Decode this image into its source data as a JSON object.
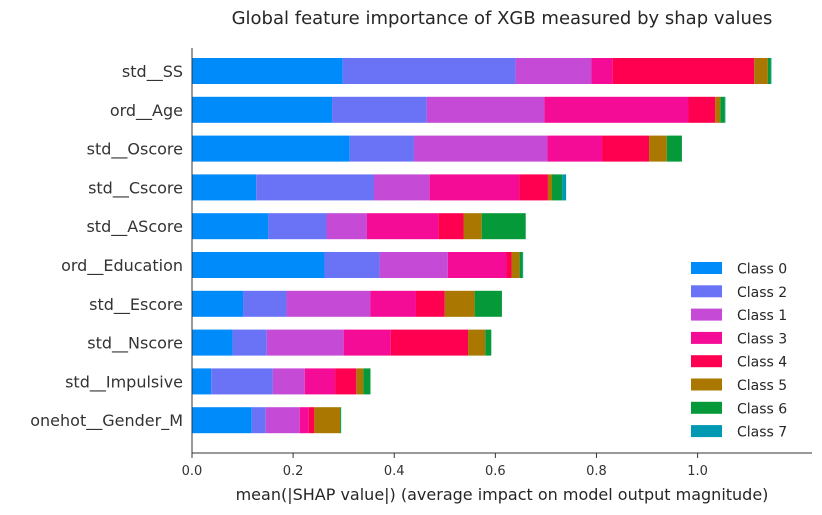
{
  "chart_data": {
    "type": "bar",
    "orientation": "horizontal",
    "stacked": true,
    "title": "Global feature importance of XGB measured by shap values",
    "xlabel": "mean(|SHAP value|) (average impact on model output magnitude)",
    "ylabel": "",
    "xlim": [
      0,
      1.15
    ],
    "xticks": [
      "0.0",
      "0.2",
      "0.4",
      "0.6",
      "0.8",
      "1.0"
    ],
    "grid": false,
    "legend_position": "bottom-right",
    "categories": [
      "std__SS",
      "ord__Age",
      "std__Oscore",
      "std__Cscore",
      "std__AScore",
      "ord__Education",
      "std__Escore",
      "std__Nscore",
      "std__Impulsive",
      "onehot__Gender_M"
    ],
    "series": [
      {
        "name": "Class 0",
        "color": "#008bfb",
        "values": [
          0.298,
          0.277,
          0.312,
          0.127,
          0.151,
          0.262,
          0.101,
          0.08,
          0.038,
          0.118
        ]
      },
      {
        "name": "Class 2",
        "color": "#6a73f6",
        "values": [
          0.342,
          0.187,
          0.127,
          0.233,
          0.115,
          0.109,
          0.086,
          0.068,
          0.122,
          0.028
        ]
      },
      {
        "name": "Class 1",
        "color": "#c54ad5",
        "values": [
          0.15,
          0.233,
          0.264,
          0.11,
          0.08,
          0.135,
          0.166,
          0.152,
          0.063,
          0.067
        ]
      },
      {
        "name": "Class 3",
        "color": "#f50c96",
        "values": [
          0.042,
          0.285,
          0.108,
          0.177,
          0.141,
          0.116,
          0.09,
          0.093,
          0.06,
          0.018
        ]
      },
      {
        "name": "Class 4",
        "color": "#ff0051",
        "values": [
          0.28,
          0.053,
          0.093,
          0.057,
          0.05,
          0.01,
          0.057,
          0.153,
          0.042,
          0.011
        ]
      },
      {
        "name": "Class 5",
        "color": "#aa7800",
        "values": [
          0.027,
          0.01,
          0.035,
          0.008,
          0.036,
          0.016,
          0.059,
          0.034,
          0.014,
          0.051
        ]
      },
      {
        "name": "Class 6",
        "color": "#05993a",
        "values": [
          0.006,
          0.009,
          0.03,
          0.02,
          0.087,
          0.006,
          0.054,
          0.012,
          0.014,
          0.002
        ]
      },
      {
        "name": "Class 7",
        "color": "#0099b2",
        "values": [
          0.001,
          0.001,
          0.0,
          0.008,
          0.0,
          0.001,
          0.0,
          0.0,
          0.0,
          0.0
        ]
      }
    ],
    "legend_order": [
      "Class 0",
      "Class 2",
      "Class 1",
      "Class 3",
      "Class 4",
      "Class 5",
      "Class 6",
      "Class 7"
    ]
  }
}
